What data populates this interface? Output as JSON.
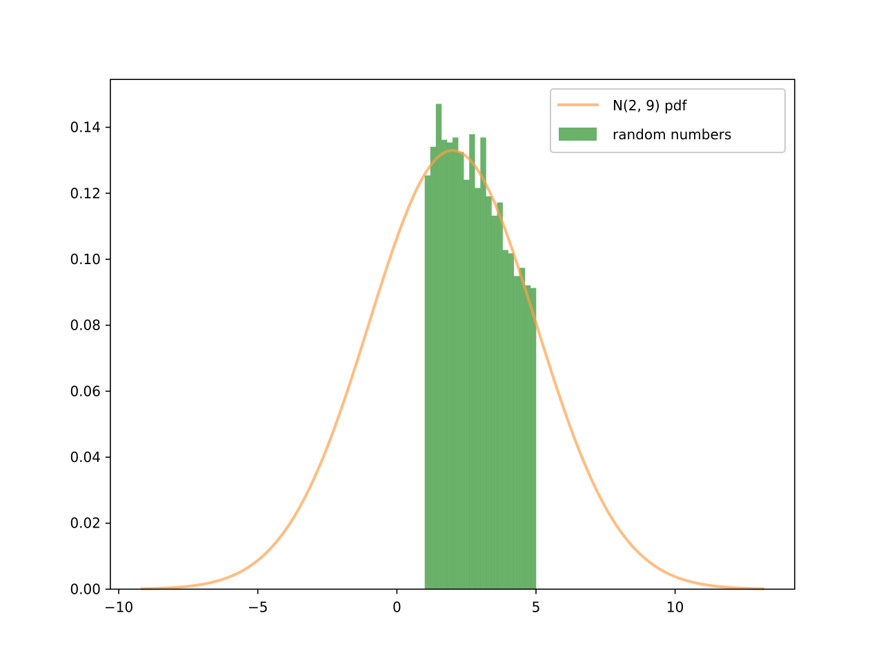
{
  "chart_data": {
    "type": "bar",
    "title": "",
    "xlabel": "",
    "ylabel": "",
    "xlim": [
      -10.3,
      14.3
    ],
    "ylim": [
      0,
      0.1545
    ],
    "grid": false,
    "legend_position": "upper right",
    "x_ticks": [
      -10,
      -5,
      0,
      5,
      10
    ],
    "x_tick_labels": [
      "−10",
      "−5",
      "0",
      "5",
      "10"
    ],
    "y_ticks": [
      0.0,
      0.02,
      0.04,
      0.06,
      0.08,
      0.1,
      0.12,
      0.14
    ],
    "y_tick_labels": [
      "0.00",
      "0.02",
      "0.04",
      "0.06",
      "0.08",
      "0.10",
      "0.12",
      "0.14"
    ],
    "series": [
      {
        "name": "N(2, 9) pdf",
        "type": "line",
        "color": "#ff9f4a",
        "distribution": {
          "mean": 2,
          "variance": 9,
          "std": 3
        },
        "x_range": [
          -9.16,
          13.16
        ],
        "peak": 0.133
      },
      {
        "name": "random numbers",
        "type": "histogram",
        "color": "#5aa95a",
        "bin_edges": [
          1.0,
          1.2,
          1.4,
          1.6,
          1.8,
          2.0,
          2.2,
          2.4,
          2.6,
          2.8,
          3.0,
          3.2,
          3.4,
          3.6,
          3.8,
          4.0,
          4.2,
          4.4,
          4.6,
          4.8,
          5.0
        ],
        "values": [
          0.1254,
          0.1341,
          0.1471,
          0.1362,
          0.1354,
          0.1369,
          0.1325,
          0.1241,
          0.1379,
          0.1216,
          0.1369,
          0.1191,
          0.1132,
          0.1172,
          0.1028,
          0.1018,
          0.0949,
          0.0974,
          0.0921,
          0.0913
        ]
      }
    ]
  },
  "legend": {
    "items": [
      {
        "label": "N(2, 9) pdf",
        "kind": "line",
        "color": "#ff9f4a"
      },
      {
        "label": "random numbers",
        "kind": "patch",
        "color": "#5aa95a"
      }
    ]
  }
}
